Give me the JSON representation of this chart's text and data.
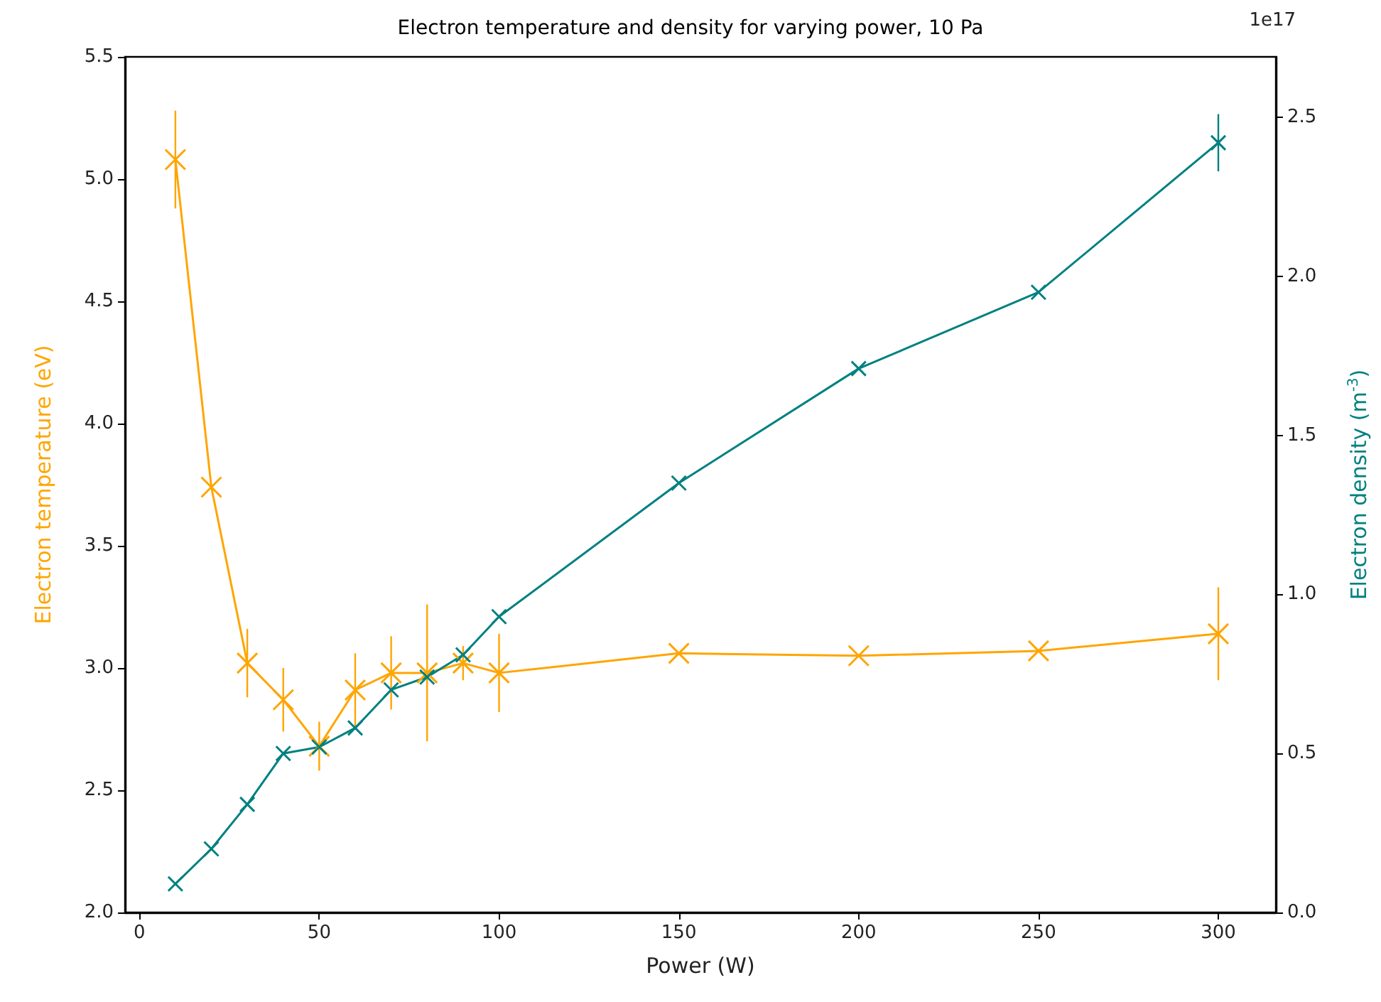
{
  "chart_data": {
    "type": "line",
    "title": "Electron temperature and density for varying power, 10 Pa",
    "xlabel": "Power (W)",
    "ylabel": "Electron temperature (eV)",
    "y2label": "Electron density (m$^{-3}$)",
    "annotations": [
      "1e17"
    ],
    "x": [
      10,
      20,
      30,
      40,
      50,
      60,
      70,
      80,
      90,
      100,
      150,
      200,
      250,
      300
    ],
    "series": [
      {
        "color": "#ffa500",
        "values": [
          5.08,
          3.74,
          3.02,
          2.87,
          2.68,
          2.91,
          2.98,
          2.98,
          3.02,
          2.98,
          3.06,
          3.05,
          3.07,
          3.14
        ],
        "errors": [
          0.2,
          null,
          0.14,
          0.13,
          0.1,
          0.15,
          0.15,
          0.28,
          0.07,
          0.16,
          null,
          null,
          null,
          0.19
        ]
      },
      {
        "color": "#008080",
        "axis": "y2",
        "values": [
          0.09,
          0.2,
          0.34,
          0.5,
          0.52,
          0.58,
          0.7,
          0.74,
          0.81,
          0.93,
          1.35,
          1.71,
          1.95,
          2.42
        ],
        "errors": [
          null,
          null,
          null,
          null,
          null,
          null,
          null,
          null,
          null,
          null,
          null,
          null,
          null,
          0.09
        ]
      }
    ],
    "xlim": [
      -4,
      316
    ],
    "xticks": [
      0,
      50,
      100,
      150,
      200,
      250,
      300
    ],
    "ylim": [
      2,
      5.5
    ],
    "yticks": [
      {
        "value": 2,
        "label": "2.0"
      },
      {
        "value": 2.5,
        "label": "2.5"
      },
      {
        "value": 3,
        "label": "3.0"
      },
      {
        "value": 3.5,
        "label": "3.5"
      },
      {
        "value": 4,
        "label": "4.0"
      },
      {
        "value": 4.5,
        "label": "4.5"
      },
      {
        "value": 5,
        "label": "5.0"
      },
      {
        "value": 5.5,
        "label": "5.5"
      }
    ],
    "y2lim": [
      0,
      2.69
    ],
    "y2ticks": [
      {
        "value": 0,
        "label": "0.0"
      },
      {
        "value": 0.5,
        "label": "0.5"
      },
      {
        "value": 1,
        "label": "1.0"
      },
      {
        "value": 1.5,
        "label": "1.5"
      },
      {
        "value": 2,
        "label": "2.0"
      },
      {
        "value": 2.5,
        "label": "2.5"
      }
    ],
    "grid": false,
    "marker": "cross",
    "line_style": "solid"
  }
}
